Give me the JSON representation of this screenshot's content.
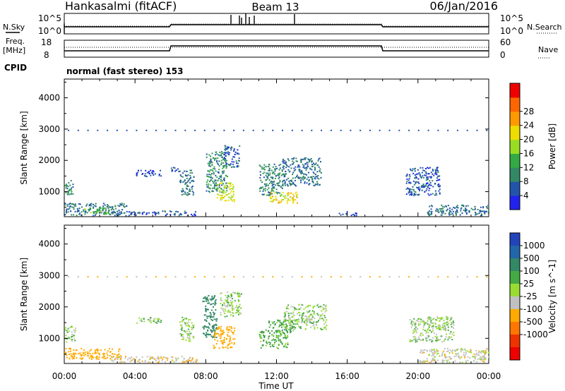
{
  "header": {
    "title": "Hankasalmi (fitACF)",
    "beam": "Beam 13",
    "date": "06/Jan/2016"
  },
  "top_panels": {
    "nsky_label": "N.Sky",
    "nsearch_label": "N.Search",
    "noise_ticks": [
      "10^5",
      "10^0"
    ],
    "freq_label": "Freq.",
    "freq_unit": "[MHz]",
    "freq_ticks": [
      "18",
      "8"
    ],
    "nave_label": "Nave",
    "nave_ticks": [
      "60",
      "0"
    ],
    "cpid_label": "CPID",
    "cpid_value": "normal (fast stereo) 153"
  },
  "x_axis": {
    "label": "Time UT",
    "ticks": [
      "00:00",
      "04:00",
      "08:00",
      "12:00",
      "16:00",
      "20:00",
      "00:00"
    ]
  },
  "colors": {
    "power_scale": [
      "#2222ee",
      "#2255aa",
      "#338866",
      "#33aa44",
      "#99dd22",
      "#eedd00",
      "#ff9900",
      "#ff6600",
      "#ee0000"
    ],
    "velocity_scale": [
      "#2244bb",
      "#2266aa",
      "#338866",
      "#44aa44",
      "#99dd33",
      "#c0c0c0",
      "#ffaa00",
      "#ff7700",
      "#ee3300",
      "#ee0000"
    ]
  },
  "chart_data": [
    {
      "type": "heatmap",
      "name": "power",
      "ylabel": "Slant Range [km]",
      "ylim": [
        200,
        4600
      ],
      "yticks": [
        "1000",
        "2000",
        "3000",
        "4000"
      ],
      "xlim_hours": [
        0,
        24
      ],
      "colorbar_label": "Power [dB]",
      "colorbar_ticks": [
        "4",
        "8",
        "12",
        "16",
        "20",
        "24",
        "28"
      ],
      "patches": [
        {
          "t0": 0.0,
          "t1": 0.5,
          "r0": 900,
          "r1": 1400,
          "v": 10
        },
        {
          "t0": 0.0,
          "t1": 3.5,
          "r0": 250,
          "r1": 650,
          "v": 8
        },
        {
          "t0": 1.0,
          "t1": 2.5,
          "r0": 300,
          "r1": 500,
          "v": 14
        },
        {
          "t0": 3.5,
          "t1": 7.5,
          "r0": 250,
          "r1": 400,
          "v": 6
        },
        {
          "t0": 4.0,
          "t1": 5.5,
          "r0": 1500,
          "r1": 1700,
          "v": 4
        },
        {
          "t0": 6.0,
          "t1": 6.6,
          "r0": 1600,
          "r1": 1800,
          "v": 6
        },
        {
          "t0": 6.5,
          "t1": 7.3,
          "r0": 900,
          "r1": 1700,
          "v": 8
        },
        {
          "t0": 8.0,
          "t1": 9.2,
          "r0": 1000,
          "r1": 2300,
          "v": 10
        },
        {
          "t0": 8.6,
          "t1": 9.6,
          "r0": 700,
          "r1": 1300,
          "v": 20
        },
        {
          "t0": 9.0,
          "t1": 9.9,
          "r0": 1800,
          "r1": 2500,
          "v": 6
        },
        {
          "t0": 11.0,
          "t1": 12.3,
          "r0": 900,
          "r1": 1900,
          "v": 10
        },
        {
          "t0": 11.6,
          "t1": 13.2,
          "r0": 650,
          "r1": 1000,
          "v": 22
        },
        {
          "t0": 12.3,
          "t1": 14.5,
          "r0": 1200,
          "r1": 2100,
          "v": 8
        },
        {
          "t0": 15.5,
          "t1": 16.5,
          "r0": 250,
          "r1": 380,
          "v": 4
        },
        {
          "t0": 19.3,
          "t1": 21.2,
          "r0": 900,
          "r1": 1800,
          "v": 6
        },
        {
          "t0": 20.5,
          "t1": 24.0,
          "r0": 250,
          "r1": 600,
          "v": 8
        }
      ]
    },
    {
      "type": "heatmap",
      "name": "velocity",
      "ylabel": "Slant Range [km]",
      "ylim": [
        200,
        4600
      ],
      "yticks": [
        "1000",
        "2000",
        "3000",
        "4000"
      ],
      "xlim_hours": [
        0,
        24
      ],
      "colorbar_label": "Velocity [m s^-1]",
      "colorbar_ticks": [
        "1000",
        "500",
        "100",
        "25",
        "-25",
        "-100",
        "-500",
        "-1000"
      ],
      "patches": [
        {
          "t0": 0.0,
          "t1": 0.6,
          "r0": 900,
          "r1": 1400,
          "v": 0
        },
        {
          "t0": 0.0,
          "t1": 3.2,
          "r0": 350,
          "r1": 700,
          "v": -300
        },
        {
          "t0": 2.5,
          "t1": 7.5,
          "r0": 250,
          "r1": 450,
          "v": -80
        },
        {
          "t0": 4.0,
          "t1": 5.5,
          "r0": 1500,
          "r1": 1700,
          "v": 0
        },
        {
          "t0": 6.5,
          "t1": 7.3,
          "r0": 900,
          "r1": 1700,
          "v": 0
        },
        {
          "t0": 7.8,
          "t1": 8.6,
          "r0": 1000,
          "r1": 2400,
          "v": 300
        },
        {
          "t0": 8.4,
          "t1": 9.6,
          "r0": 700,
          "r1": 1400,
          "v": -300
        },
        {
          "t0": 8.8,
          "t1": 10.0,
          "r0": 1700,
          "r1": 2500,
          "v": 0
        },
        {
          "t0": 11.0,
          "t1": 12.6,
          "r0": 700,
          "r1": 1300,
          "v": 60
        },
        {
          "t0": 11.5,
          "t1": 13.0,
          "r0": 1200,
          "r1": 1600,
          "v": 60
        },
        {
          "t0": 12.4,
          "t1": 14.8,
          "r0": 1300,
          "r1": 2100,
          "v": 0
        },
        {
          "t0": 19.5,
          "t1": 22.0,
          "r0": 900,
          "r1": 1700,
          "v": 0
        },
        {
          "t0": 20.0,
          "t1": 24.0,
          "r0": 250,
          "r1": 700,
          "v": -60
        }
      ]
    }
  ]
}
